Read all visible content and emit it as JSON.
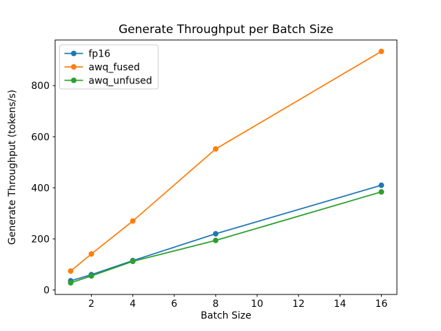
{
  "chart_data": {
    "type": "line",
    "title": "Generate Throughput per Batch Size",
    "xlabel": "Batch Size",
    "ylabel": "Generate Throughput (tokens/s)",
    "x": [
      1,
      2,
      4,
      8,
      16
    ],
    "series": [
      {
        "name": "fp16",
        "color": "#1f77b4",
        "values": [
          36,
          60,
          115,
          220,
          410
        ]
      },
      {
        "name": "awq_fused",
        "color": "#ff7f0e",
        "values": [
          74,
          141,
          270,
          552,
          934
        ]
      },
      {
        "name": "awq_unfused",
        "color": "#2ca02c",
        "values": [
          28,
          55,
          112,
          194,
          384
        ]
      }
    ],
    "xticks": [
      2,
      4,
      6,
      8,
      10,
      12,
      14,
      16
    ],
    "yticks": [
      0,
      200,
      400,
      600,
      800
    ],
    "xlim": [
      0.25,
      16.75
    ],
    "ylim": [
      -17.5,
      978.7
    ],
    "grid": false,
    "legend_position": "upper left",
    "marker": "circle",
    "background": "#ffffff",
    "axis_color": "#000000",
    "legend_border_color": "#cccccc"
  }
}
